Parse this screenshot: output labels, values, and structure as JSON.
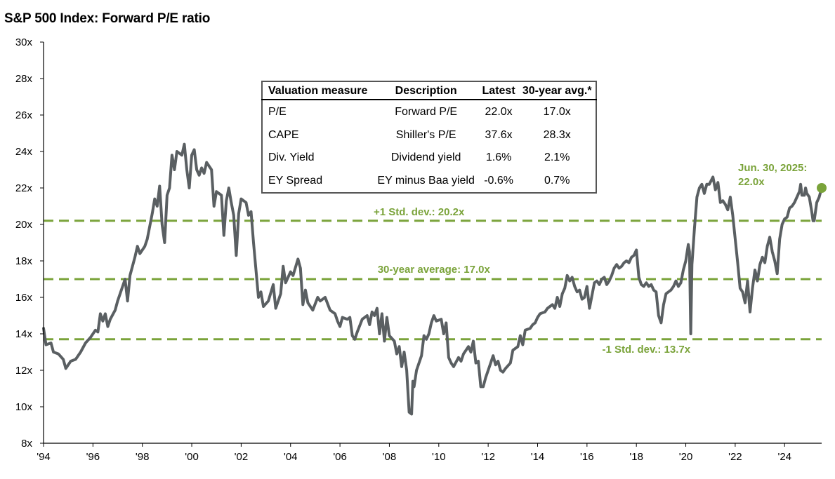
{
  "title": "S&P 500 Index: Forward P/E ratio",
  "colors": {
    "line": "#5a5f62",
    "reference": "#7aa33a",
    "axis": "#000000"
  },
  "table": {
    "headers": [
      "Valuation measure",
      "Description",
      "Latest",
      "30-year avg.*"
    ],
    "rows": [
      [
        "P/E",
        "Forward P/E",
        "22.0x",
        "17.0x"
      ],
      [
        "CAPE",
        "Shiller's P/E",
        "37.6x",
        "28.3x"
      ],
      [
        "Div. Yield",
        "Dividend yield",
        "1.6%",
        "2.1%"
      ],
      [
        "EY Spread",
        "EY minus Baa yield",
        "-0.6%",
        "0.7%"
      ]
    ]
  },
  "chart_data": {
    "type": "line",
    "title": "S&P 500 Index: Forward P/E ratio",
    "xlabel": "",
    "ylabel": "",
    "xlim": [
      1994.0,
      2025.5
    ],
    "ylim": [
      8,
      30
    ],
    "y_ticks": [
      "8x",
      "10x",
      "12x",
      "14x",
      "16x",
      "18x",
      "20x",
      "22x",
      "24x",
      "26x",
      "28x",
      "30x"
    ],
    "x_ticks": [
      "'94",
      "'96",
      "'98",
      "'00",
      "'02",
      "'04",
      "'06",
      "'08",
      "'10",
      "'12",
      "'14",
      "'16",
      "'18",
      "'20",
      "'22",
      "'24"
    ],
    "grid": false,
    "reference_lines": [
      {
        "label": "+1 Std. dev.: 20.2x",
        "value": 20.2
      },
      {
        "label": "30-year average: 17.0x",
        "value": 17.0
      },
      {
        "label": "-1 Std. dev.: 13.7x",
        "value": 13.7
      }
    ],
    "annotation": {
      "line1": "Jun. 30, 2025:",
      "line2": "22.0x",
      "x": 2025.5,
      "y": 22.0
    },
    "series": [
      {
        "values": [
          [
            1994.0,
            14.3
          ],
          [
            1994.1,
            13.4
          ],
          [
            1994.3,
            13.5
          ],
          [
            1994.4,
            13.0
          ],
          [
            1994.6,
            12.9
          ],
          [
            1994.8,
            12.6
          ],
          [
            1994.9,
            12.1
          ],
          [
            1995.1,
            12.5
          ],
          [
            1995.3,
            12.6
          ],
          [
            1995.5,
            13.0
          ],
          [
            1995.7,
            13.5
          ],
          [
            1995.9,
            13.8
          ],
          [
            1996.1,
            14.2
          ],
          [
            1996.2,
            14.1
          ],
          [
            1996.3,
            15.1
          ],
          [
            1996.4,
            14.7
          ],
          [
            1996.5,
            15.1
          ],
          [
            1996.6,
            14.4
          ],
          [
            1996.7,
            14.8
          ],
          [
            1996.9,
            15.3
          ],
          [
            1997.0,
            15.8
          ],
          [
            1997.2,
            16.6
          ],
          [
            1997.3,
            17.0
          ],
          [
            1997.4,
            15.8
          ],
          [
            1997.5,
            17.2
          ],
          [
            1997.7,
            18.2
          ],
          [
            1997.8,
            18.8
          ],
          [
            1997.9,
            18.4
          ],
          [
            1998.1,
            18.8
          ],
          [
            1998.2,
            19.2
          ],
          [
            1998.4,
            20.6
          ],
          [
            1998.5,
            21.4
          ],
          [
            1998.6,
            21.0
          ],
          [
            1998.7,
            22.1
          ],
          [
            1998.8,
            20.0
          ],
          [
            1998.9,
            19.0
          ],
          [
            1999.0,
            21.6
          ],
          [
            1999.1,
            22.0
          ],
          [
            1999.2,
            23.8
          ],
          [
            1999.3,
            23.0
          ],
          [
            1999.4,
            24.0
          ],
          [
            1999.6,
            23.8
          ],
          [
            1999.7,
            24.4
          ],
          [
            1999.8,
            23.0
          ],
          [
            1999.9,
            22.0
          ],
          [
            2000.0,
            23.8
          ],
          [
            2000.1,
            24.1
          ],
          [
            2000.2,
            23.0
          ],
          [
            2000.3,
            22.7
          ],
          [
            2000.4,
            23.1
          ],
          [
            2000.5,
            22.8
          ],
          [
            2000.6,
            23.4
          ],
          [
            2000.8,
            23.0
          ],
          [
            2000.9,
            21.0
          ],
          [
            2001.0,
            21.8
          ],
          [
            2001.2,
            21.6
          ],
          [
            2001.3,
            19.4
          ],
          [
            2001.4,
            21.3
          ],
          [
            2001.5,
            22.0
          ],
          [
            2001.6,
            21.2
          ],
          [
            2001.7,
            20.5
          ],
          [
            2001.8,
            18.3
          ],
          [
            2001.9,
            20.6
          ],
          [
            2002.0,
            21.4
          ],
          [
            2002.2,
            21.2
          ],
          [
            2002.3,
            20.5
          ],
          [
            2002.4,
            20.7
          ],
          [
            2002.5,
            19.0
          ],
          [
            2002.6,
            17.5
          ],
          [
            2002.7,
            16.0
          ],
          [
            2002.8,
            16.3
          ],
          [
            2002.9,
            15.5
          ],
          [
            2003.1,
            15.8
          ],
          [
            2003.3,
            16.7
          ],
          [
            2003.4,
            15.4
          ],
          [
            2003.6,
            16.2
          ],
          [
            2003.7,
            17.7
          ],
          [
            2003.8,
            16.8
          ],
          [
            2003.9,
            17.1
          ],
          [
            2004.0,
            17.4
          ],
          [
            2004.1,
            17.2
          ],
          [
            2004.3,
            18.1
          ],
          [
            2004.4,
            17.6
          ],
          [
            2004.5,
            15.6
          ],
          [
            2004.6,
            16.4
          ],
          [
            2004.7,
            15.7
          ],
          [
            2004.9,
            15.3
          ],
          [
            2005.1,
            16.0
          ],
          [
            2005.2,
            15.8
          ],
          [
            2005.4,
            16.0
          ],
          [
            2005.6,
            15.3
          ],
          [
            2005.8,
            15.1
          ],
          [
            2005.9,
            14.7
          ],
          [
            2006.0,
            14.4
          ],
          [
            2006.1,
            14.9
          ],
          [
            2006.3,
            14.8
          ],
          [
            2006.4,
            14.9
          ],
          [
            2006.5,
            13.9
          ],
          [
            2006.6,
            13.7
          ],
          [
            2006.7,
            14.1
          ],
          [
            2006.9,
            14.8
          ],
          [
            2007.1,
            15.0
          ],
          [
            2007.2,
            14.5
          ],
          [
            2007.3,
            15.2
          ],
          [
            2007.4,
            15.0
          ],
          [
            2007.5,
            15.4
          ],
          [
            2007.6,
            14.0
          ],
          [
            2007.7,
            15.1
          ],
          [
            2007.8,
            13.6
          ],
          [
            2007.9,
            14.9
          ],
          [
            2008.0,
            13.9
          ],
          [
            2008.2,
            13.6
          ],
          [
            2008.3,
            12.9
          ],
          [
            2008.4,
            13.3
          ],
          [
            2008.5,
            12.2
          ],
          [
            2008.6,
            13.0
          ],
          [
            2008.7,
            12.0
          ],
          [
            2008.8,
            9.7
          ],
          [
            2008.9,
            9.6
          ],
          [
            2008.95,
            11.4
          ],
          [
            2009.0,
            11.1
          ],
          [
            2009.1,
            12.0
          ],
          [
            2009.3,
            12.8
          ],
          [
            2009.4,
            13.9
          ],
          [
            2009.5,
            13.7
          ],
          [
            2009.6,
            14.0
          ],
          [
            2009.7,
            14.6
          ],
          [
            2009.8,
            15.0
          ],
          [
            2009.9,
            14.7
          ],
          [
            2010.1,
            14.8
          ],
          [
            2010.2,
            14.0
          ],
          [
            2010.3,
            14.6
          ],
          [
            2010.4,
            12.7
          ],
          [
            2010.5,
            12.4
          ],
          [
            2010.6,
            12.2
          ],
          [
            2010.8,
            12.7
          ],
          [
            2010.9,
            12.5
          ],
          [
            2011.0,
            12.9
          ],
          [
            2011.2,
            13.3
          ],
          [
            2011.3,
            13.0
          ],
          [
            2011.4,
            13.6
          ],
          [
            2011.5,
            12.4
          ],
          [
            2011.6,
            12.5
          ],
          [
            2011.7,
            11.1
          ],
          [
            2011.8,
            11.1
          ],
          [
            2011.9,
            11.6
          ],
          [
            2012.1,
            12.4
          ],
          [
            2012.2,
            12.8
          ],
          [
            2012.3,
            12.3
          ],
          [
            2012.4,
            12.5
          ],
          [
            2012.5,
            12.0
          ],
          [
            2012.6,
            11.9
          ],
          [
            2012.7,
            12.1
          ],
          [
            2012.9,
            12.4
          ],
          [
            2013.0,
            13.1
          ],
          [
            2013.2,
            13.3
          ],
          [
            2013.3,
            13.9
          ],
          [
            2013.4,
            13.4
          ],
          [
            2013.5,
            14.2
          ],
          [
            2013.7,
            14.3
          ],
          [
            2013.8,
            14.5
          ],
          [
            2013.9,
            14.6
          ],
          [
            2014.0,
            14.9
          ],
          [
            2014.1,
            15.1
          ],
          [
            2014.3,
            15.2
          ],
          [
            2014.4,
            15.4
          ],
          [
            2014.5,
            15.5
          ],
          [
            2014.6,
            15.6
          ],
          [
            2014.7,
            15.4
          ],
          [
            2014.8,
            16.0
          ],
          [
            2014.9,
            15.5
          ],
          [
            2015.0,
            16.2
          ],
          [
            2015.1,
            16.5
          ],
          [
            2015.2,
            17.2
          ],
          [
            2015.3,
            16.9
          ],
          [
            2015.4,
            17.1
          ],
          [
            2015.5,
            16.6
          ],
          [
            2015.6,
            16.3
          ],
          [
            2015.7,
            16.4
          ],
          [
            2015.8,
            15.9
          ],
          [
            2015.9,
            16.0
          ],
          [
            2016.0,
            16.6
          ],
          [
            2016.1,
            15.4
          ],
          [
            2016.2,
            16.1
          ],
          [
            2016.3,
            16.8
          ],
          [
            2016.4,
            16.9
          ],
          [
            2016.5,
            16.7
          ],
          [
            2016.6,
            17.0
          ],
          [
            2016.7,
            17.1
          ],
          [
            2016.8,
            16.7
          ],
          [
            2016.9,
            16.9
          ],
          [
            2017.0,
            17.2
          ],
          [
            2017.1,
            17.6
          ],
          [
            2017.2,
            17.8
          ],
          [
            2017.3,
            17.6
          ],
          [
            2017.4,
            17.7
          ],
          [
            2017.5,
            17.9
          ],
          [
            2017.6,
            18.0
          ],
          [
            2017.7,
            17.9
          ],
          [
            2017.8,
            18.2
          ],
          [
            2017.9,
            18.3
          ],
          [
            2018.0,
            18.6
          ],
          [
            2018.1,
            17.1
          ],
          [
            2018.2,
            16.7
          ],
          [
            2018.3,
            16.6
          ],
          [
            2018.4,
            16.8
          ],
          [
            2018.5,
            16.6
          ],
          [
            2018.6,
            16.7
          ],
          [
            2018.7,
            16.4
          ],
          [
            2018.8,
            16.3
          ],
          [
            2018.9,
            15.0
          ],
          [
            2019.0,
            14.6
          ],
          [
            2019.1,
            15.6
          ],
          [
            2019.2,
            16.2
          ],
          [
            2019.3,
            16.3
          ],
          [
            2019.4,
            16.4
          ],
          [
            2019.5,
            16.6
          ],
          [
            2019.6,
            16.9
          ],
          [
            2019.7,
            16.6
          ],
          [
            2019.8,
            16.8
          ],
          [
            2019.9,
            17.5
          ],
          [
            2020.0,
            18.0
          ],
          [
            2020.1,
            18.9
          ],
          [
            2020.15,
            18.5
          ],
          [
            2020.2,
            14.0
          ],
          [
            2020.25,
            17.8
          ],
          [
            2020.35,
            19.8
          ],
          [
            2020.45,
            21.5
          ],
          [
            2020.55,
            22.0
          ],
          [
            2020.65,
            22.2
          ],
          [
            2020.75,
            21.7
          ],
          [
            2020.85,
            22.2
          ],
          [
            2020.95,
            22.2
          ],
          [
            2021.1,
            22.6
          ],
          [
            2021.2,
            21.9
          ],
          [
            2021.3,
            22.3
          ],
          [
            2021.4,
            21.2
          ],
          [
            2021.5,
            21.3
          ],
          [
            2021.6,
            21.1
          ],
          [
            2021.7,
            20.8
          ],
          [
            2021.8,
            21.5
          ],
          [
            2021.9,
            20.5
          ],
          [
            2022.0,
            19.2
          ],
          [
            2022.1,
            17.9
          ],
          [
            2022.2,
            16.5
          ],
          [
            2022.3,
            16.3
          ],
          [
            2022.4,
            15.7
          ],
          [
            2022.5,
            16.9
          ],
          [
            2022.6,
            15.2
          ],
          [
            2022.7,
            16.5
          ],
          [
            2022.8,
            17.5
          ],
          [
            2022.9,
            16.9
          ],
          [
            2023.0,
            17.8
          ],
          [
            2023.1,
            18.2
          ],
          [
            2023.2,
            17.9
          ],
          [
            2023.3,
            18.8
          ],
          [
            2023.4,
            19.3
          ],
          [
            2023.5,
            18.5
          ],
          [
            2023.6,
            18.0
          ],
          [
            2023.7,
            17.3
          ],
          [
            2023.8,
            19.2
          ],
          [
            2023.9,
            20.0
          ],
          [
            2024.0,
            20.3
          ],
          [
            2024.1,
            20.4
          ],
          [
            2024.2,
            20.9
          ],
          [
            2024.3,
            21.0
          ],
          [
            2024.4,
            21.2
          ],
          [
            2024.5,
            21.5
          ],
          [
            2024.6,
            21.8
          ],
          [
            2024.65,
            22.2
          ],
          [
            2024.7,
            21.6
          ],
          [
            2024.8,
            21.6
          ],
          [
            2024.85,
            22.0
          ],
          [
            2024.9,
            21.7
          ],
          [
            2025.0,
            21.5
          ],
          [
            2025.1,
            20.7
          ],
          [
            2025.15,
            20.2
          ],
          [
            2025.2,
            20.2
          ],
          [
            2025.3,
            21.2
          ],
          [
            2025.4,
            21.5
          ],
          [
            2025.5,
            22.0
          ]
        ]
      }
    ]
  }
}
